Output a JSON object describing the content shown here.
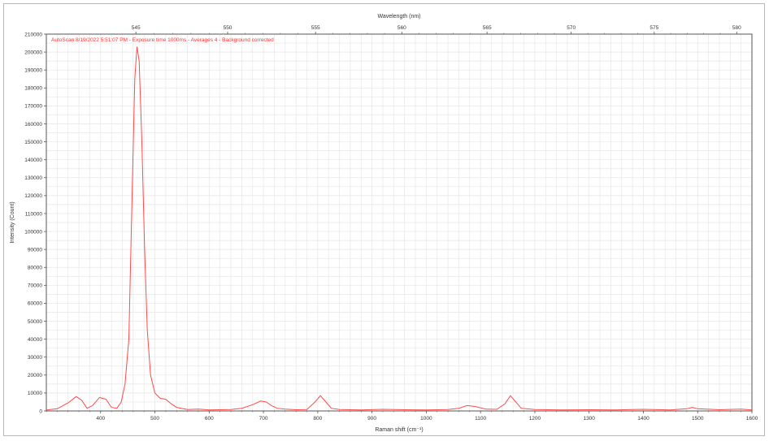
{
  "chart_data": {
    "type": "line",
    "annotation": "AutoScan 8/19/2022 5:51:07 PM - Exposure time 1000ms - Averages 4 - Background corrected",
    "xlabel": "Raman shift (cm⁻¹)",
    "ylabel": "Intensity (Count)",
    "x2label": "Wavelength (nm)",
    "xlim": [
      300,
      1600
    ],
    "ylim": [
      0,
      210000
    ],
    "x_ticks": [
      400,
      500,
      600,
      700,
      800,
      900,
      1000,
      1100,
      1200,
      1300,
      1400,
      1500,
      1600
    ],
    "x_tick_labels": [
      "400",
      "500",
      "600",
      "700",
      "800",
      "900",
      "1000",
      "1100",
      "1200",
      "1300",
      "1400",
      "1500",
      "1600"
    ],
    "y_ticks": [
      0,
      10000,
      20000,
      30000,
      40000,
      50000,
      60000,
      70000,
      80000,
      90000,
      100000,
      110000,
      120000,
      130000,
      140000,
      150000,
      160000,
      170000,
      180000,
      190000,
      200000,
      210000
    ],
    "y_tick_labels": [
      "0",
      "10000",
      "20000",
      "30000",
      "40000",
      "50000",
      "60000",
      "70000",
      "80000",
      "90000",
      "100000",
      "110000",
      "120000",
      "130000",
      "140000",
      "150000",
      "160000",
      "170000",
      "180000",
      "190000",
      "200000",
      "210000"
    ],
    "top_axis_ticks": [
      {
        "raman": 465,
        "label": "545"
      },
      {
        "raman": 634,
        "label": "550"
      },
      {
        "raman": 796,
        "label": "555"
      },
      {
        "raman": 955,
        "label": "560"
      },
      {
        "raman": 1112,
        "label": "565"
      },
      {
        "raman": 1267,
        "label": "570"
      },
      {
        "raman": 1420,
        "label": "575"
      },
      {
        "raman": 1572,
        "label": "580"
      }
    ],
    "grid": true,
    "colors": {
      "line": "#ff4a4a",
      "annotation": "#ff3333",
      "grid": "#e6e6e6",
      "axis": "#555555"
    },
    "series": [
      {
        "values": [
          [
            300,
            500
          ],
          [
            320,
            1200
          ],
          [
            340,
            4500
          ],
          [
            355,
            8000
          ],
          [
            365,
            6000
          ],
          [
            375,
            1500
          ],
          [
            385,
            3000
          ],
          [
            398,
            7500
          ],
          [
            410,
            6500
          ],
          [
            420,
            2000
          ],
          [
            430,
            1500
          ],
          [
            438,
            5000
          ],
          [
            445,
            15000
          ],
          [
            452,
            40000
          ],
          [
            458,
            120000
          ],
          [
            463,
            185000
          ],
          [
            467,
            203000
          ],
          [
            471,
            195000
          ],
          [
            476,
            150000
          ],
          [
            481,
            90000
          ],
          [
            486,
            45000
          ],
          [
            492,
            20000
          ],
          [
            500,
            10000
          ],
          [
            510,
            7000
          ],
          [
            520,
            6500
          ],
          [
            530,
            4000
          ],
          [
            540,
            2000
          ],
          [
            560,
            800
          ],
          [
            580,
            1000
          ],
          [
            600,
            600
          ],
          [
            640,
            800
          ],
          [
            660,
            1500
          ],
          [
            680,
            3500
          ],
          [
            695,
            5500
          ],
          [
            705,
            5000
          ],
          [
            715,
            3000
          ],
          [
            725,
            1500
          ],
          [
            740,
            1000
          ],
          [
            760,
            700
          ],
          [
            780,
            800
          ],
          [
            795,
            5000
          ],
          [
            805,
            8500
          ],
          [
            815,
            5000
          ],
          [
            825,
            1500
          ],
          [
            840,
            800
          ],
          [
            880,
            600
          ],
          [
            920,
            900
          ],
          [
            960,
            700
          ],
          [
            1000,
            600
          ],
          [
            1040,
            800
          ],
          [
            1060,
            1500
          ],
          [
            1075,
            3000
          ],
          [
            1090,
            2500
          ],
          [
            1110,
            1000
          ],
          [
            1130,
            900
          ],
          [
            1145,
            4000
          ],
          [
            1155,
            8500
          ],
          [
            1165,
            5000
          ],
          [
            1175,
            1500
          ],
          [
            1200,
            800
          ],
          [
            1250,
            600
          ],
          [
            1300,
            700
          ],
          [
            1350,
            600
          ],
          [
            1400,
            900
          ],
          [
            1450,
            600
          ],
          [
            1480,
            1200
          ],
          [
            1490,
            2000
          ],
          [
            1500,
            1200
          ],
          [
            1540,
            700
          ],
          [
            1580,
            1000
          ],
          [
            1600,
            600
          ]
        ]
      }
    ]
  }
}
